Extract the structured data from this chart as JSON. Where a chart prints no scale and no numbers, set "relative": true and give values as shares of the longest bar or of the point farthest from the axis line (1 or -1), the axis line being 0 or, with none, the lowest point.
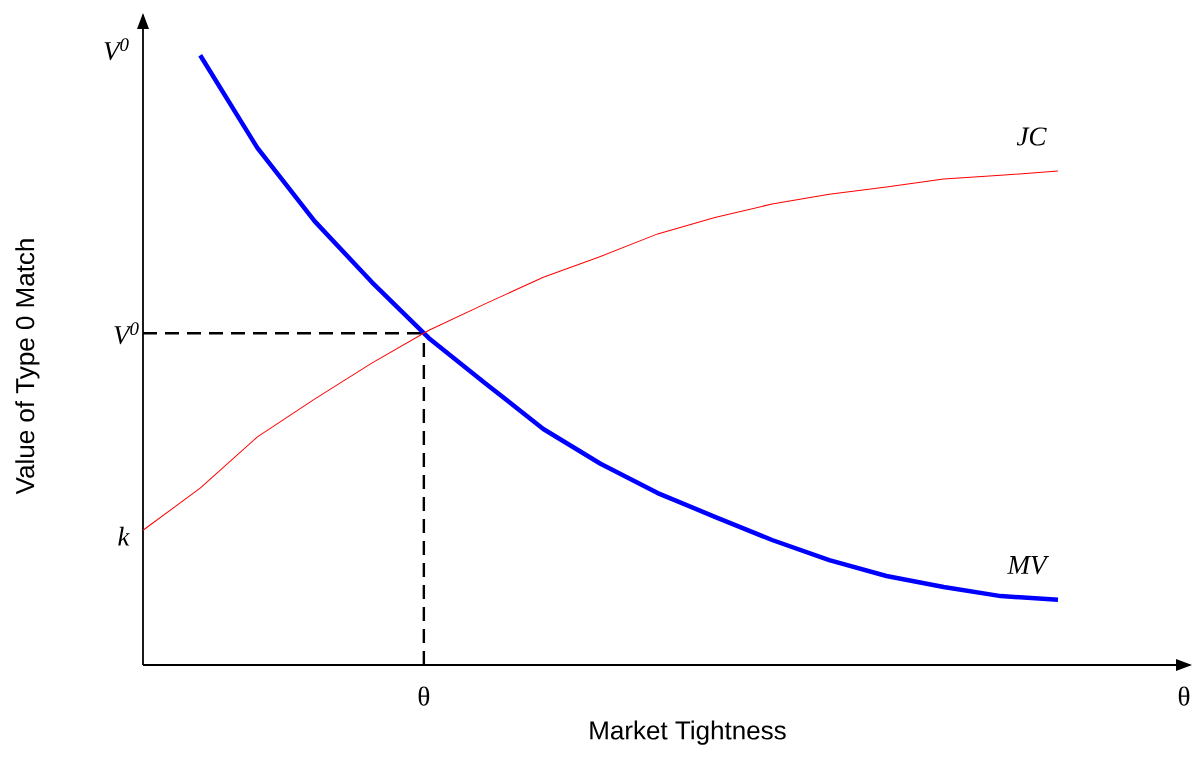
{
  "chart_data": {
    "type": "line",
    "relative": true,
    "xlabel": "Market Tightness",
    "ylabel": "Value of Type 0 Match",
    "categories": [
      null,
      null,
      null,
      null,
      null,
      null,
      null,
      null,
      null,
      null,
      null,
      null,
      null,
      null,
      null,
      null,
      null
    ],
    "marker": "none",
    "line_style": "solid",
    "series": [
      {
        "name": "MV",
        "color": "#0000ff",
        "values": [
          null,
          1.0,
          0.848,
          0.728,
          0.628,
          0.536,
          0.461,
          0.387,
          0.33,
          0.282,
          0.243,
          0.205,
          0.172,
          0.146,
          0.128,
          0.113,
          0.107
        ]
      },
      {
        "name": "JC",
        "color": "#ff0000",
        "values": [
          0.221,
          0.29,
          0.374,
          0.436,
          0.495,
          0.549,
          0.593,
          0.636,
          0.67,
          0.707,
          0.734,
          0.756,
          0.772,
          0.784,
          0.797,
          0.803,
          0.81
        ]
      }
    ],
    "ref_lines": [
      {
        "axis": "y",
        "value": 0.544,
        "label": "V$^{0}$",
        "color": "#000000",
        "line_style": "dashed"
      }
    ],
    "annotations": [
      "V$^{0}$",
      "k",
      "θ",
      "θ"
    ]
  }
}
